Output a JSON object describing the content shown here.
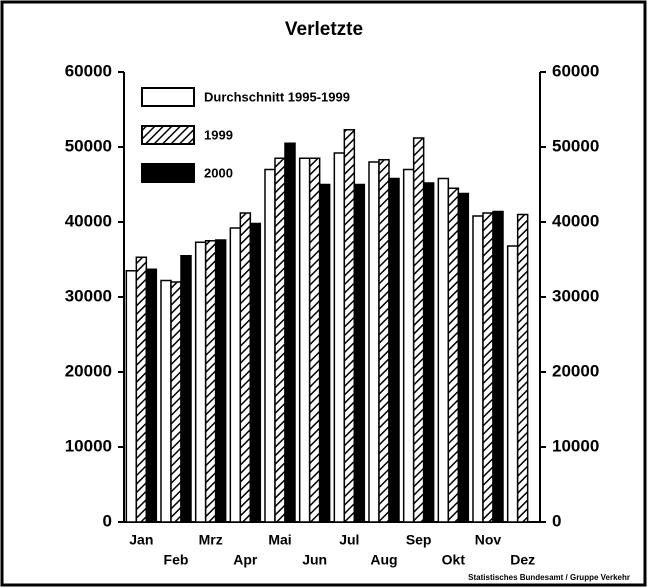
{
  "chart_data": {
    "type": "bar",
    "title": "Verletzte",
    "categories": [
      "Jan",
      "Feb",
      "Mrz",
      "Apr",
      "Mai",
      "Jun",
      "Jul",
      "Aug",
      "Sep",
      "Okt",
      "Nov",
      "Dez"
    ],
    "series": [
      {
        "name": "Durchschnitt 1995-1999",
        "color": "#ffffff",
        "fill": "plain",
        "values": [
          33500,
          32200,
          37300,
          39200,
          47000,
          48500,
          49200,
          48000,
          47000,
          45800,
          40800,
          36800
        ]
      },
      {
        "name": "1999",
        "color": "#ffffff",
        "fill": "hatch",
        "values": [
          35300,
          32000,
          37500,
          41200,
          48500,
          48500,
          52300,
          48300,
          51200,
          44500,
          41200,
          41000
        ]
      },
      {
        "name": "2000",
        "color": "#000000",
        "fill": "plain",
        "values": [
          33700,
          35500,
          37600,
          39800,
          50500,
          45000,
          45000,
          45800,
          45200,
          43800,
          41400,
          null
        ]
      }
    ],
    "ylim": [
      0,
      60000
    ],
    "yticks": [
      0,
      10000,
      20000,
      30000,
      40000,
      50000,
      60000
    ],
    "y2lim": [
      0,
      60000
    ],
    "y2ticks": [
      0,
      10000,
      20000,
      30000,
      40000,
      50000,
      60000
    ],
    "legend": "upper left",
    "source": "Statistisches Bundesamt / Gruppe Verkehr"
  }
}
